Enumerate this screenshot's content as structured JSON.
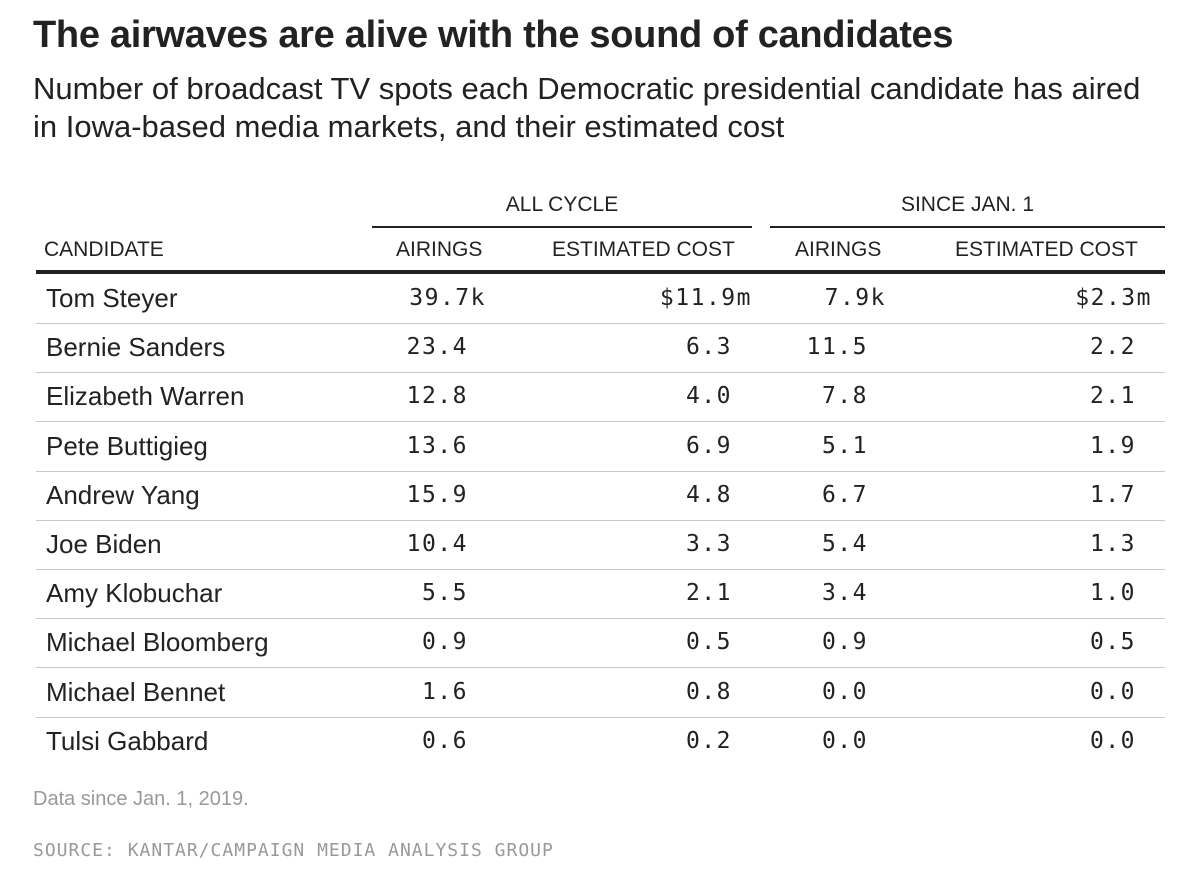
{
  "chart_data": {
    "type": "table",
    "title": "The airwaves are alive with the sound of candidates",
    "subtitle": "Number of broadcast TV spots each Democratic presidential candidate has aired in Iowa-based media markets, and their estimated cost",
    "column_groups": [
      "ALL CYCLE",
      "SINCE JAN. 1"
    ],
    "columns": [
      "CANDIDATE",
      "AIRINGS",
      "ESTIMATED COST",
      "AIRINGS",
      "ESTIMATED COST"
    ],
    "rows": [
      [
        "Tom Steyer",
        "39.7k",
        "$11.9m",
        "7.9k",
        "$2.3m"
      ],
      [
        "Bernie Sanders",
        "23.4",
        "6.3",
        "11.5",
        "2.2"
      ],
      [
        "Elizabeth Warren",
        "12.8",
        "4.0",
        "7.8",
        "2.1"
      ],
      [
        "Pete Buttigieg",
        "13.6",
        "6.9",
        "5.1",
        "1.9"
      ],
      [
        "Andrew Yang",
        "15.9",
        "4.8",
        "6.7",
        "1.7"
      ],
      [
        "Joe Biden",
        "10.4",
        "3.3",
        "5.4",
        "1.3"
      ],
      [
        "Amy Klobuchar",
        "5.5",
        "2.1",
        "3.4",
        "1.0"
      ],
      [
        "Michael Bloomberg",
        "0.9",
        "0.5",
        "0.9",
        "0.5"
      ],
      [
        "Michael Bennet",
        "1.6",
        "0.8",
        "0.0",
        "0.0"
      ],
      [
        "Tulsi Gabbard",
        "0.6",
        "0.2",
        "0.0",
        "0.0"
      ]
    ],
    "note": "Data since Jan. 1, 2019.",
    "source": "SOURCE: KANTAR/CAMPAIGN MEDIA ANALYSIS GROUP"
  },
  "colors": {
    "text": "#222222",
    "muted": "#999999",
    "divider": "#c8c8c8"
  }
}
